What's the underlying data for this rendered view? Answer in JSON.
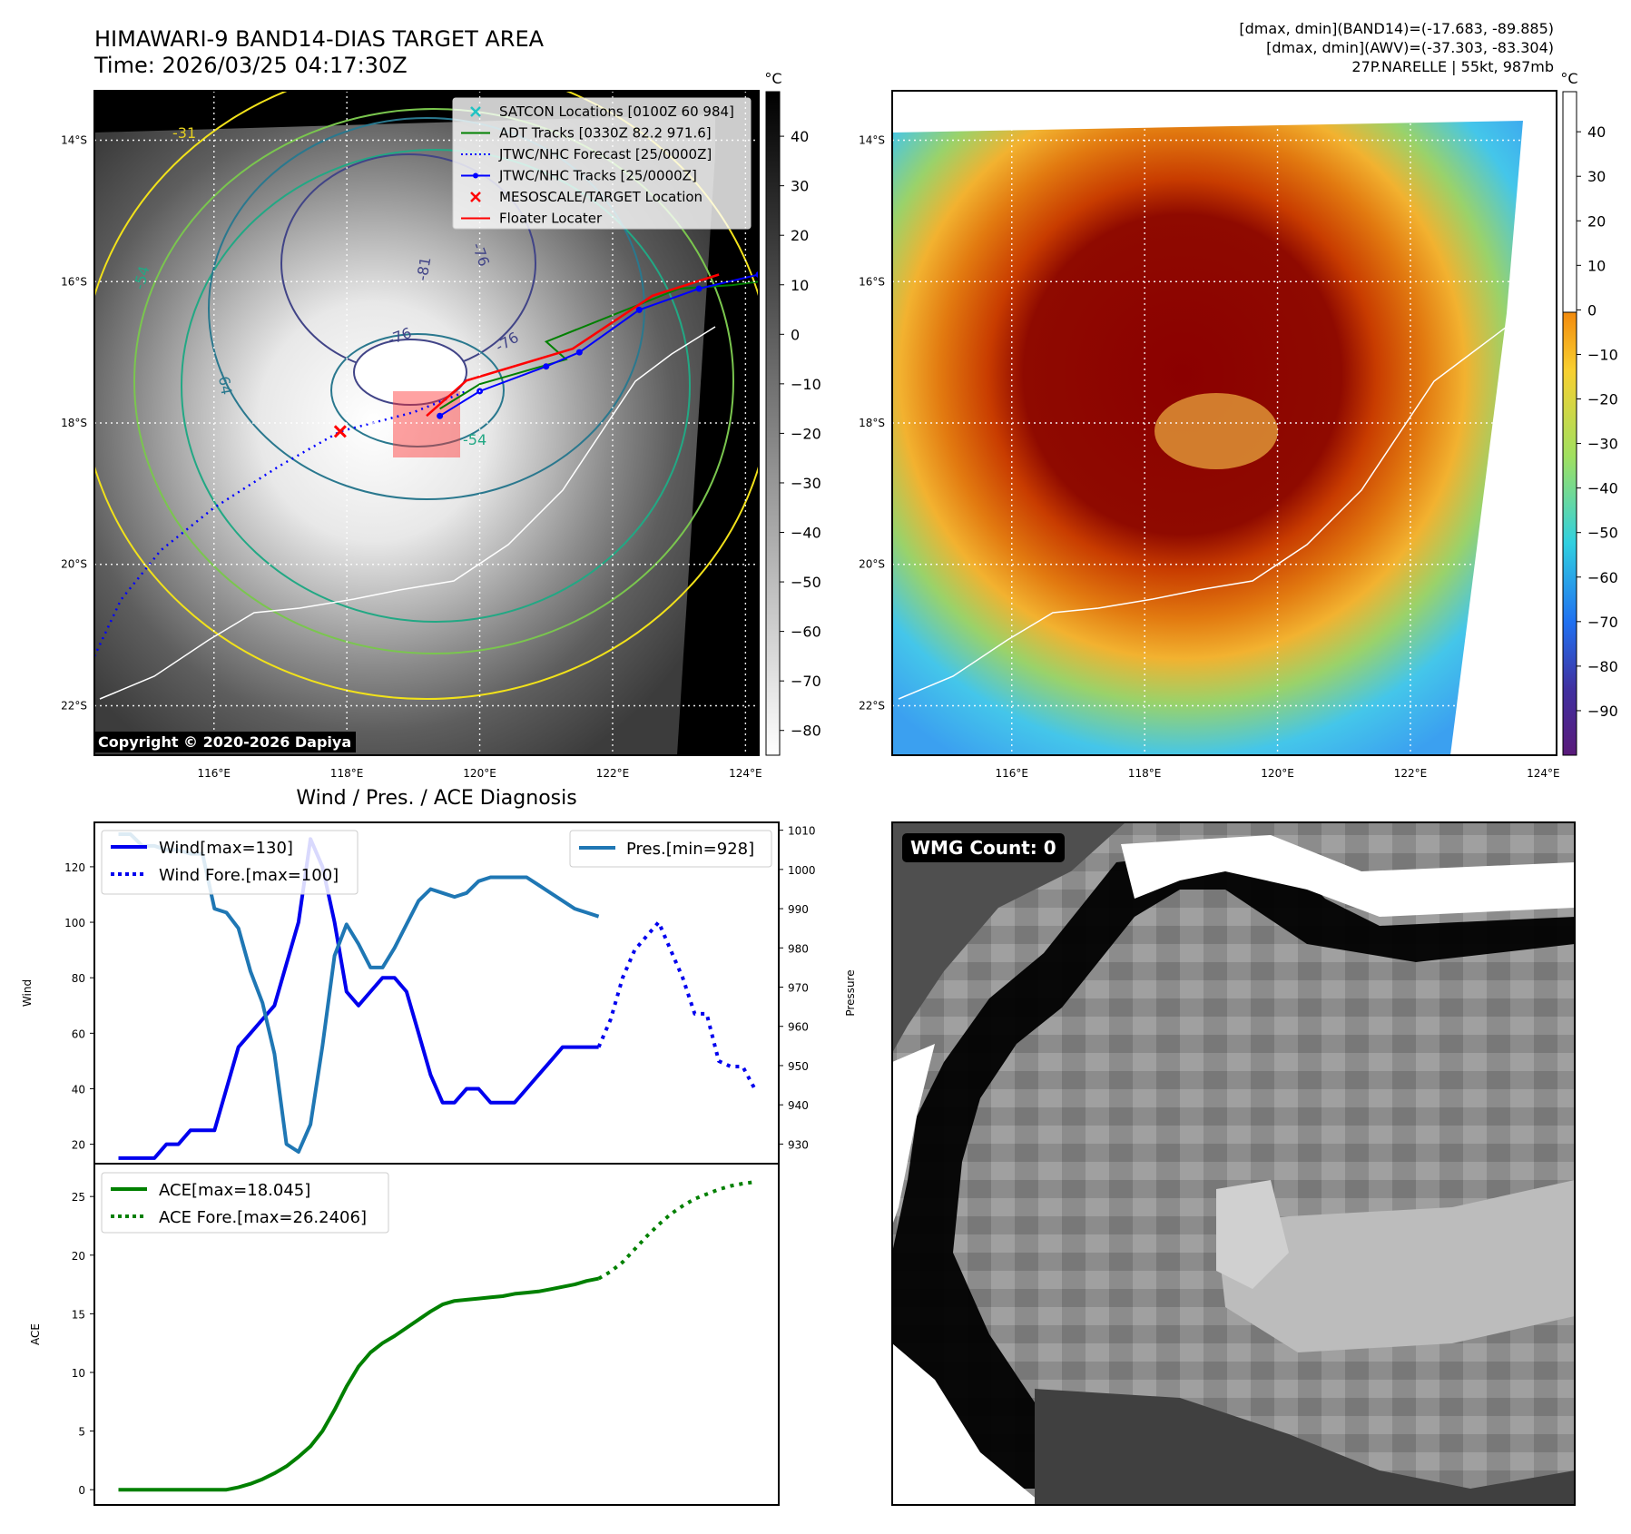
{
  "header": {
    "title_line1": "HIMAWARI-9 BAND14-DIAS TARGET AREA",
    "title_line2": "Time: 2026/03/25 04:17:30Z",
    "info_line1": "[dmax, dmin](BAND14)=(-17.683, -89.885)",
    "info_line2": "[dmax, dmin](AWV)=(-37.303, -83.304)",
    "info_line3": "27P.NARELLE | 55kt, 987mb"
  },
  "map": {
    "lat_ticks": [
      "14°S",
      "16°S",
      "18°S",
      "20°S",
      "22°S"
    ],
    "lon_ticks": [
      "116°E",
      "118°E",
      "120°E",
      "122°E",
      "124°E"
    ],
    "lat_values": [
      -14,
      -16,
      -18,
      -20,
      -22
    ],
    "lon_values": [
      116,
      118,
      120,
      122,
      124
    ],
    "lon_range": [
      114.2,
      124.2
    ],
    "lat_range": [
      -13.3,
      -22.7
    ],
    "contour_labels": [
      "-31",
      "-54",
      "-64",
      "-76",
      "-81",
      "-76",
      "-76",
      "-54"
    ],
    "copyright": "Copyright © 2020-2026 Dapiya",
    "legend": [
      {
        "label": "SATCON Locations [0100Z 60 984]",
        "color": "#22c3c3",
        "marker": "x"
      },
      {
        "label": "ADT Tracks [0330Z 82.2 971.6]",
        "color": "#008000",
        "marker": "line"
      },
      {
        "label": "JTWC/NHC Forecast [25/0000Z]",
        "color": "#0000ff",
        "marker": "dotted"
      },
      {
        "label": "JTWC/NHC Tracks [25/0000Z]",
        "color": "#0000ff",
        "marker": "line-dot"
      },
      {
        "label": "MESOSCALE/TARGET Location",
        "color": "#ff0000",
        "marker": "x"
      },
      {
        "label": "Floater Locater",
        "color": "#ff0000",
        "marker": "line"
      }
    ],
    "target_location": {
      "lon": 117.9,
      "lat": -18.12
    },
    "forecast_track": [
      [
        114.2,
        -21.3
      ],
      [
        114.6,
        -20.5
      ],
      [
        115.2,
        -19.8
      ],
      [
        116.0,
        -19.2
      ],
      [
        117.0,
        -18.6
      ],
      [
        117.9,
        -18.12
      ],
      [
        119.0,
        -17.85
      ],
      [
        119.8,
        -17.55
      ]
    ],
    "jtwc_track": [
      [
        119.4,
        -17.9
      ],
      [
        120.0,
        -17.55
      ],
      [
        121.0,
        -17.2
      ],
      [
        121.5,
        -17.0
      ],
      [
        122.4,
        -16.4
      ],
      [
        123.3,
        -16.1
      ],
      [
        124.2,
        -15.9
      ]
    ],
    "adt_track": [
      [
        119.4,
        -17.8
      ],
      [
        120.0,
        -17.45
      ],
      [
        121.3,
        -17.1
      ],
      [
        121.0,
        -16.85
      ],
      [
        123.0,
        -16.1
      ],
      [
        123.8,
        -16.05
      ],
      [
        124.2,
        -16.0
      ]
    ],
    "floater_track": [
      [
        119.2,
        -17.9
      ],
      [
        119.8,
        -17.4
      ],
      [
        121.4,
        -16.95
      ],
      [
        122.6,
        -16.2
      ],
      [
        123.6,
        -15.9
      ]
    ]
  },
  "colorbar_left": {
    "unit": "°C",
    "ticks": [
      "40",
      "30",
      "20",
      "10",
      "0",
      "−10",
      "−20",
      "−30",
      "−40",
      "−50",
      "−60",
      "−70",
      "−80"
    ],
    "values": [
      40,
      30,
      20,
      10,
      0,
      -10,
      -20,
      -30,
      -40,
      -50,
      -60,
      -70,
      -80
    ],
    "range": [
      -85,
      49
    ]
  },
  "colorbar_right": {
    "unit": "°C",
    "ticks": [
      "40",
      "30",
      "20",
      "10",
      "0",
      "−10",
      "−20",
      "−30",
      "−40",
      "−50",
      "−60",
      "−70",
      "−80",
      "−90"
    ],
    "values": [
      40,
      30,
      20,
      10,
      0,
      -10,
      -20,
      -30,
      -40,
      -50,
      -60,
      -70,
      -80,
      -90
    ],
    "range": [
      -100,
      49
    ]
  },
  "wmg": {
    "label": "WMG Count: 0"
  },
  "chart_data": [
    {
      "type": "line",
      "title": "Wind / Pres. / ACE Diagnosis",
      "ylabel": "Wind",
      "y2label": "Pressure",
      "ylim": [
        13,
        136
      ],
      "y2lim": [
        925,
        1012
      ],
      "yticks": [
        20,
        40,
        60,
        80,
        100,
        120
      ],
      "y2ticks": [
        930,
        940,
        950,
        960,
        970,
        980,
        990,
        1000,
        1010
      ],
      "xlim": [
        -1,
        56
      ],
      "series": [
        {
          "name": "Wind[max=130]",
          "color": "#0000ee",
          "style": "solid",
          "x": [
            1,
            2,
            3,
            4,
            5,
            6,
            7,
            8,
            9,
            10,
            11,
            12,
            13,
            14,
            15,
            16,
            17,
            18,
            19,
            20,
            21,
            22,
            23,
            24,
            25,
            26,
            27,
            28,
            29,
            30,
            31,
            32,
            33,
            34,
            35,
            36,
            37,
            38,
            39,
            40,
            41
          ],
          "values": [
            15,
            15,
            15,
            15,
            20,
            20,
            25,
            25,
            25,
            40,
            55,
            60,
            65,
            70,
            85,
            100,
            130,
            120,
            100,
            75,
            70,
            75,
            80,
            80,
            75,
            60,
            45,
            35,
            35,
            40,
            40,
            35,
            35,
            35,
            40,
            45,
            50,
            55,
            55,
            55,
            55
          ]
        },
        {
          "name": "Wind Fore.[max=100]",
          "color": "#0000ee",
          "style": "dotted",
          "x": [
            41,
            42,
            43,
            44,
            45,
            46,
            47,
            48,
            49,
            50,
            51,
            52,
            53,
            54
          ],
          "values": [
            55,
            65,
            80,
            90,
            95,
            100,
            90,
            80,
            67,
            67,
            50,
            48,
            48,
            40
          ]
        },
        {
          "name": "Pres.[min=928]",
          "color": "#1f77b4",
          "style": "solid",
          "axis": "right",
          "x": [
            1,
            2,
            3,
            4,
            5,
            6,
            7,
            8,
            9,
            10,
            11,
            12,
            13,
            14,
            15,
            16,
            17,
            18,
            19,
            20,
            21,
            22,
            23,
            24,
            25,
            26,
            27,
            28,
            29,
            30,
            31,
            32,
            33,
            34,
            35,
            36,
            37,
            38,
            39,
            40,
            41
          ],
          "values": [
            1009,
            1009,
            1006,
            1006,
            1005,
            1005,
            1004,
            1004,
            990,
            989,
            985,
            974,
            966,
            953,
            930,
            928,
            935,
            955,
            978,
            986,
            981,
            975,
            975,
            980,
            986,
            992,
            995,
            994,
            993,
            994,
            997,
            998,
            998,
            998,
            998,
            996,
            994,
            992,
            990,
            989,
            988
          ]
        }
      ]
    },
    {
      "type": "line",
      "ylabel": "ACE",
      "ylim": [
        -1.3,
        27.8
      ],
      "yticks": [
        0,
        5,
        10,
        15,
        20,
        25
      ],
      "xlim": [
        -1,
        56
      ],
      "series": [
        {
          "name": "ACE[max=18.045]",
          "color": "#008000",
          "style": "solid",
          "x": [
            1,
            5,
            9,
            10,
            11,
            12,
            13,
            14,
            15,
            16,
            17,
            18,
            19,
            20,
            21,
            22,
            23,
            24,
            25,
            26,
            27,
            28,
            29,
            30,
            31,
            32,
            33,
            34,
            35,
            36,
            37,
            38,
            39,
            40,
            41
          ],
          "values": [
            0,
            0,
            0,
            0,
            0.2,
            0.5,
            0.9,
            1.4,
            2.0,
            2.8,
            3.7,
            5.0,
            6.8,
            8.8,
            10.5,
            11.7,
            12.5,
            13.1,
            13.8,
            14.5,
            15.2,
            15.8,
            16.1,
            16.2,
            16.3,
            16.4,
            16.5,
            16.7,
            16.8,
            16.9,
            17.1,
            17.3,
            17.5,
            17.8,
            18.0
          ]
        },
        {
          "name": "ACE Fore.[max=26.2406]",
          "color": "#008000",
          "style": "dotted",
          "x": [
            41,
            42,
            43,
            44,
            45,
            46,
            47,
            48,
            49,
            50,
            51,
            52,
            53,
            54
          ],
          "values": [
            18.0,
            18.6,
            19.4,
            20.5,
            21.6,
            22.6,
            23.5,
            24.2,
            24.8,
            25.2,
            25.6,
            25.9,
            26.1,
            26.24
          ]
        }
      ]
    }
  ]
}
